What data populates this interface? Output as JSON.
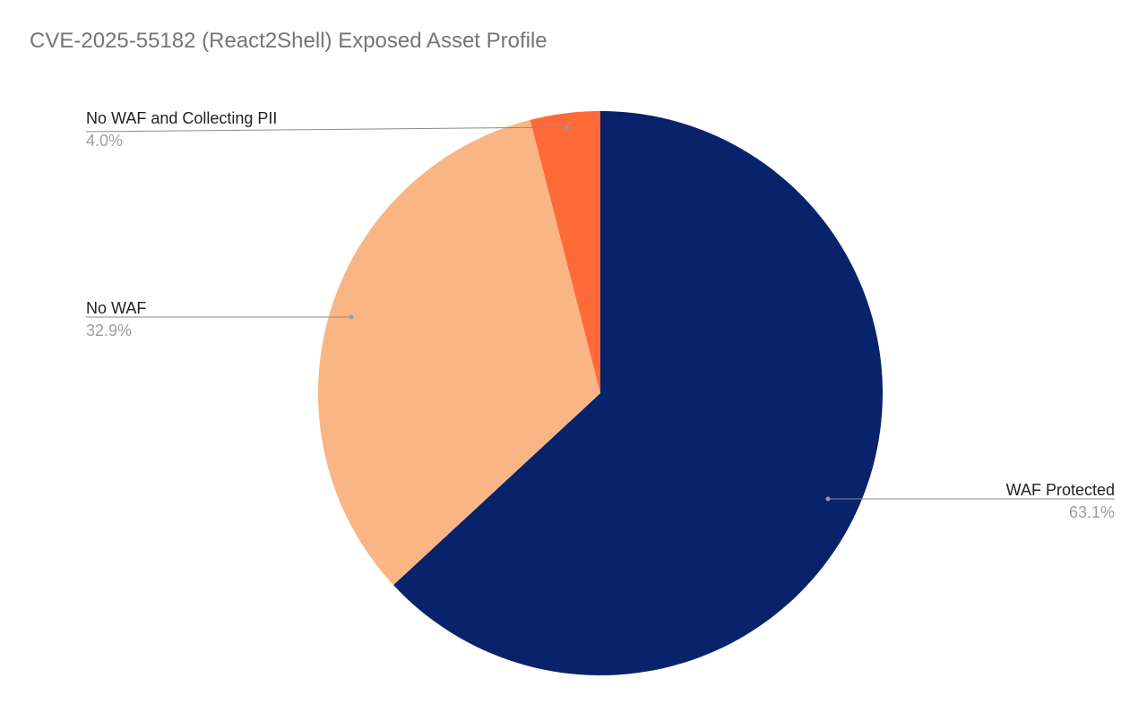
{
  "chart_data": {
    "type": "pie",
    "title": "CVE-2025-55182 (React2Shell) Exposed Asset Profile",
    "slices": [
      {
        "label": "WAF Protected",
        "value": 63.1,
        "display": "63.1%",
        "color": "#08236b"
      },
      {
        "label": "No WAF",
        "value": 32.9,
        "display": "32.9%",
        "color": "#fab584"
      },
      {
        "label": "No WAF and Collecting PII",
        "value": 4.0,
        "display": "4.0%",
        "color": "#ff6a39"
      }
    ],
    "start_angle_deg": 0,
    "direction": "clockwise",
    "legend": "labels with leader lines"
  }
}
